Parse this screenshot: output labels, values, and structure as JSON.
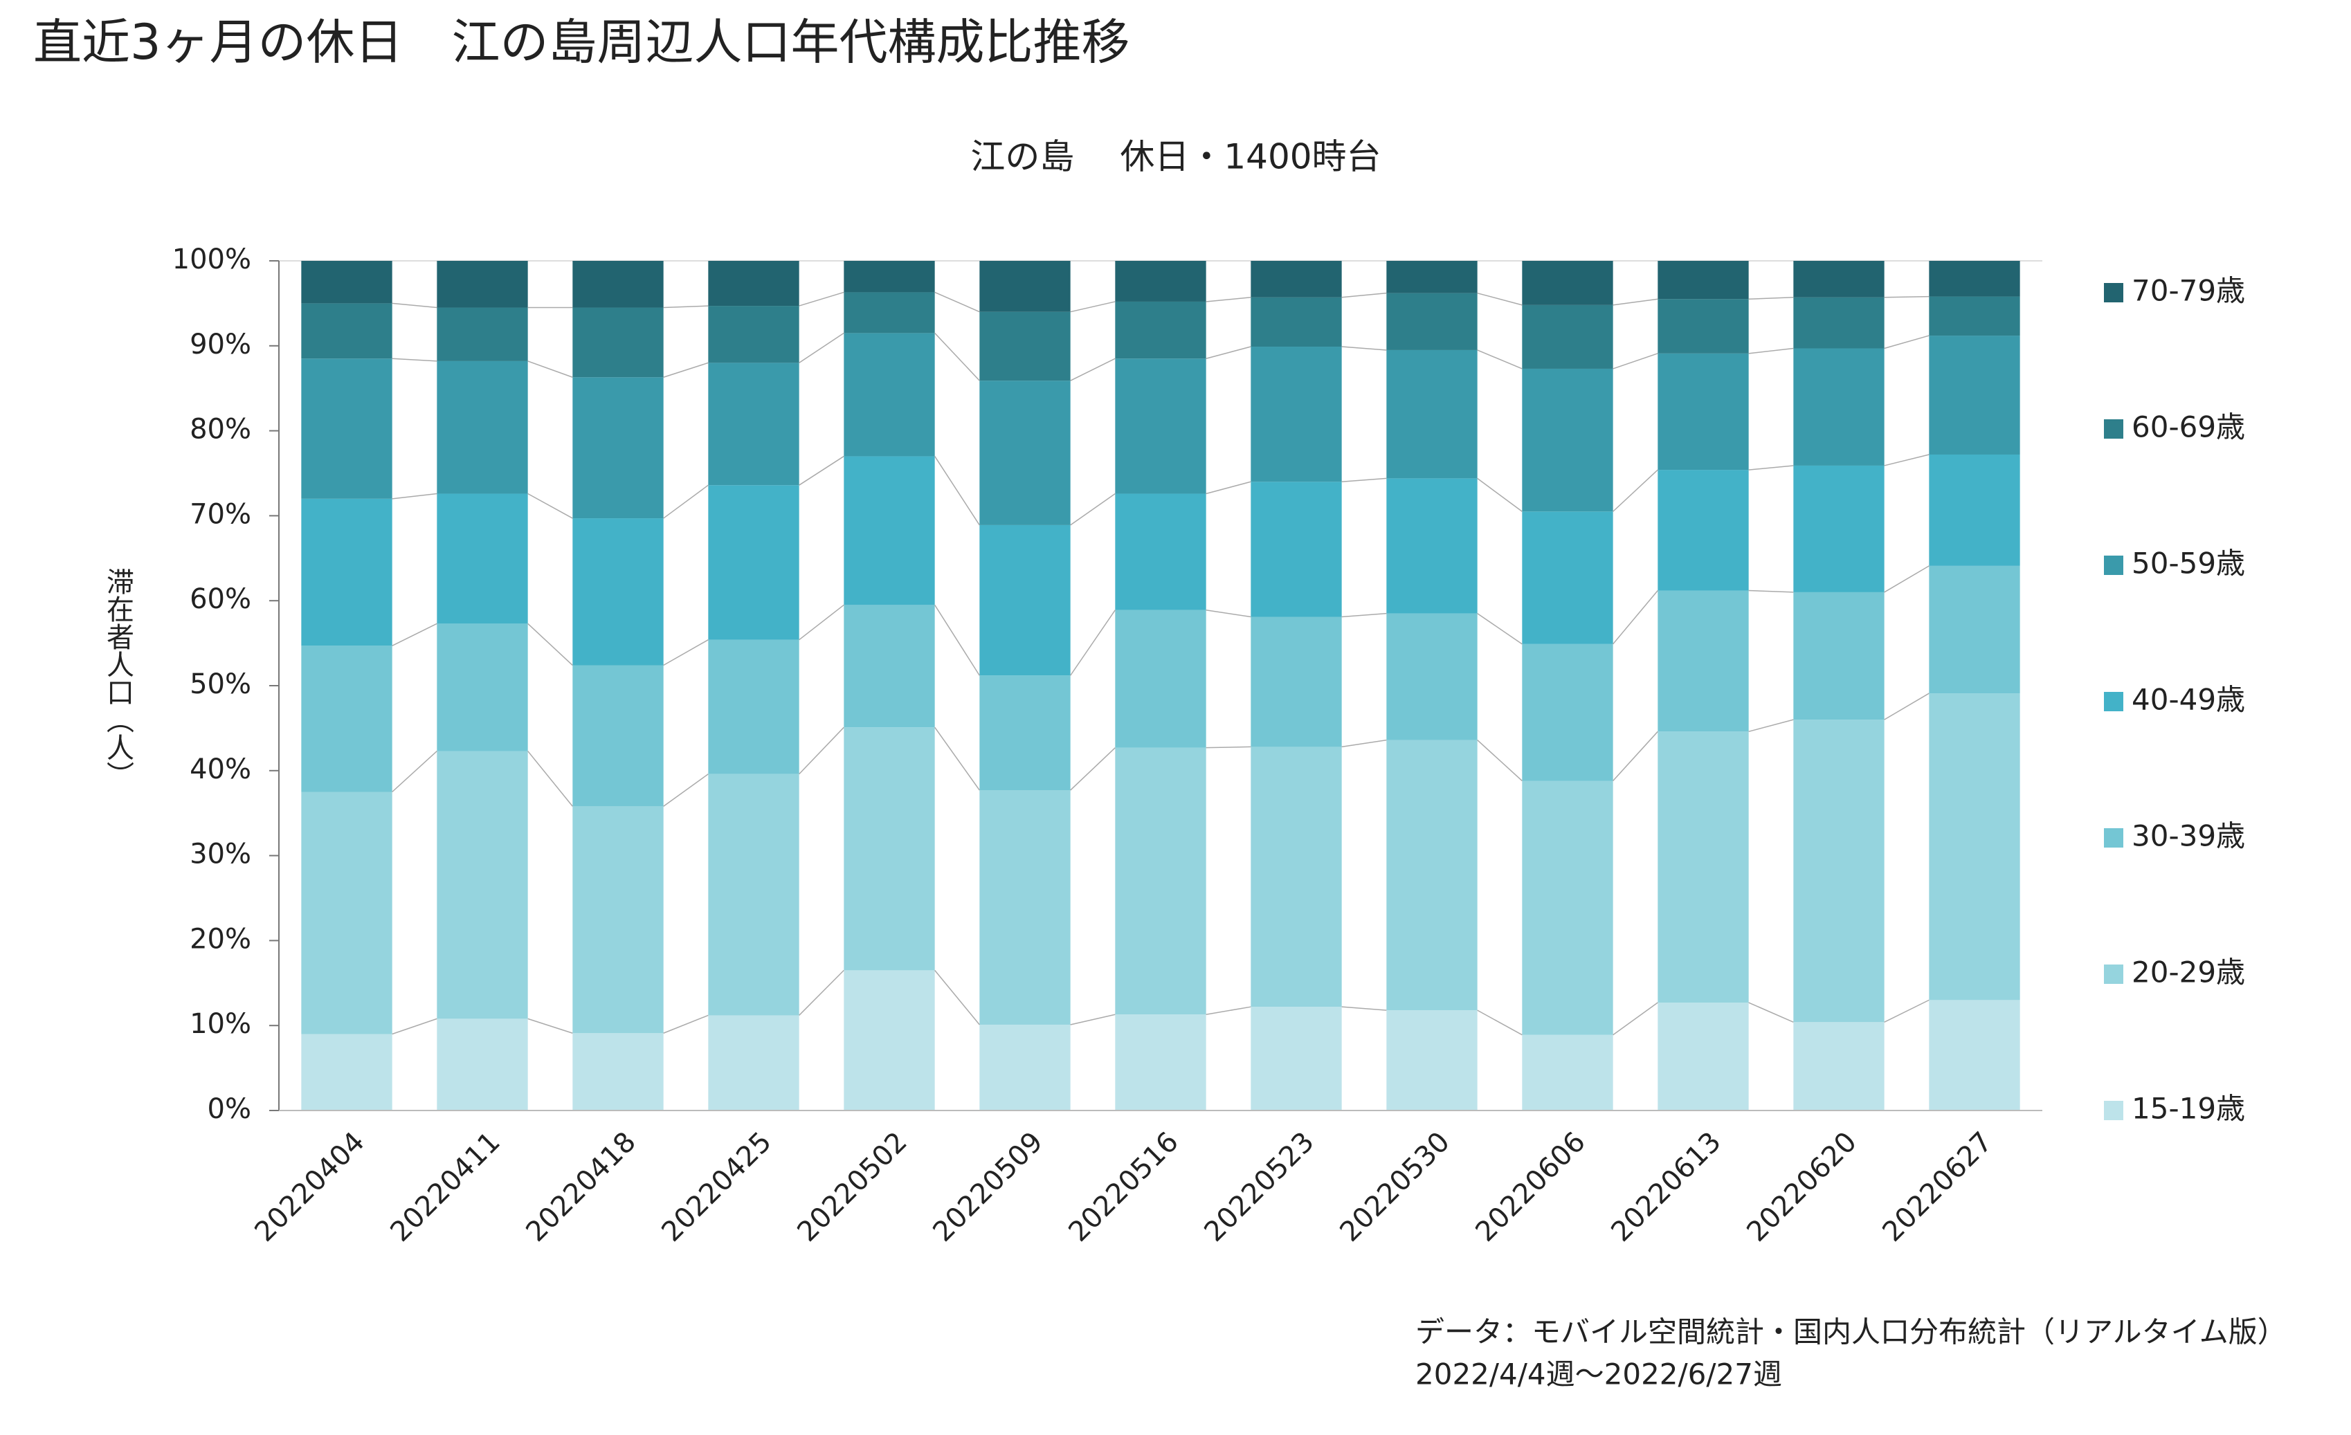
{
  "chart_data": {
    "type": "stacked-bar-100",
    "title": "直近3ヶ月の休日　江の島周辺人口年代構成比推移",
    "subtitle": "江の島　 休日・1400時台",
    "y_label": "滞在者人口（人）",
    "note": [
      "データ：モバイル空間統計・国内人口分布統計（リアルタイム版）",
      "2022/4/4週～2022/6/27週"
    ],
    "categories": [
      "20220404",
      "20220411",
      "20220418",
      "20220425",
      "20220502",
      "20220509",
      "20220516",
      "20220523",
      "20220530",
      "20220606",
      "20220613",
      "20220620",
      "20220627"
    ],
    "series": [
      {
        "name": "15-19歳",
        "color": "#bde3ea",
        "values": [
          9,
          10.8,
          9.1,
          11.2,
          16.5,
          10.1,
          11.3,
          12.2,
          11.8,
          8.9,
          12.7,
          10.4,
          13
        ]
      },
      {
        "name": "20-29歳",
        "color": "#95d4de",
        "values": [
          28.5,
          31.5,
          26.7,
          28.4,
          28.6,
          27.6,
          31.4,
          30.6,
          31.8,
          29.9,
          31.9,
          35.6,
          36.1
        ]
      },
      {
        "name": "30-39歳",
        "color": "#74c6d4",
        "values": [
          17.2,
          15,
          16.6,
          15.8,
          14.4,
          13.5,
          16.2,
          15.3,
          14.9,
          16.1,
          16.6,
          15,
          15
        ]
      },
      {
        "name": "40-49歳",
        "color": "#43b2c8",
        "values": [
          17.3,
          15.3,
          17.3,
          18.2,
          17.5,
          17.7,
          13.7,
          15.9,
          15.9,
          15.6,
          14.2,
          14.9,
          13.1
        ]
      },
      {
        "name": "50-59歳",
        "color": "#3a9aab",
        "values": [
          16.5,
          15.6,
          16.6,
          14.4,
          14.5,
          17,
          15.9,
          15.9,
          15.1,
          16.8,
          13.7,
          13.8,
          14
        ]
      },
      {
        "name": "60-69歳",
        "color": "#2e7f8b",
        "values": [
          6.5,
          6.3,
          8.2,
          6.7,
          4.8,
          8.1,
          6.7,
          5.8,
          6.7,
          7.5,
          6.4,
          6,
          4.6
        ]
      },
      {
        "name": "70-79歳",
        "color": "#226470",
        "values": [
          5,
          5.5,
          5.5,
          5.3,
          3.7,
          6,
          4.8,
          4.3,
          3.8,
          5.2,
          4.5,
          4.3,
          4.2
        ]
      }
    ],
    "ylim": [
      0,
      100
    ],
    "yticks": [
      {
        "value": 0,
        "label": "0%"
      },
      {
        "value": 10,
        "label": "10%"
      },
      {
        "value": 20,
        "label": "20%"
      },
      {
        "value": 30,
        "label": "30%"
      },
      {
        "value": 40,
        "label": "40%"
      },
      {
        "value": 50,
        "label": "50%"
      },
      {
        "value": 60,
        "label": "60%"
      },
      {
        "value": 70,
        "label": "70%"
      },
      {
        "value": 80,
        "label": "80%"
      },
      {
        "value": 90,
        "label": "90%"
      },
      {
        "value": 100,
        "label": "100%"
      }
    ],
    "legend": "right"
  }
}
